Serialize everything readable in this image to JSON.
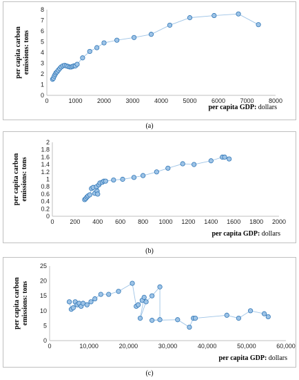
{
  "chart_data": [
    {
      "type": "scatter",
      "caption": "(a)",
      "xlabel_bold": "per capita GDP:",
      "xlabel_rest": " dollars",
      "ylabel_line1": "per capita carbon",
      "ylabel_line2": "emissions: tons",
      "xlim": [
        0,
        8000
      ],
      "ylim": [
        0,
        8
      ],
      "xticks": [
        0,
        1000,
        2000,
        3000,
        4000,
        5000,
        6000,
        7000,
        8000
      ],
      "xtick_labels": [
        "0",
        "1000",
        "2000",
        "3000",
        "4000",
        "5000",
        "6000",
        "7000",
        "8000"
      ],
      "yticks": [
        0,
        1,
        2,
        3,
        4,
        5,
        6,
        7,
        8
      ],
      "ytick_labels": [
        "0",
        "1",
        "2",
        "3",
        "4",
        "5",
        "6",
        "7",
        "8"
      ],
      "grid": false,
      "connected": true,
      "point_color": "#9dc3e6",
      "point_edge": "#2e75b6",
      "line_color": "#9dc3e6",
      "x": [
        200,
        230,
        260,
        290,
        320,
        360,
        400,
        450,
        500,
        560,
        620,
        680,
        740,
        800,
        850,
        900,
        950,
        1000,
        1060,
        1250,
        1500,
        1750,
        2000,
        2450,
        3050,
        3650,
        4300,
        5000,
        5850,
        6700,
        7400
      ],
      "y": [
        1.5,
        1.6,
        1.8,
        1.95,
        2.1,
        2.2,
        2.35,
        2.5,
        2.65,
        2.75,
        2.8,
        2.75,
        2.7,
        2.65,
        2.65,
        2.7,
        2.75,
        2.75,
        2.9,
        3.5,
        4.1,
        4.45,
        4.9,
        5.15,
        5.4,
        5.7,
        6.55,
        7.25,
        7.45,
        7.6,
        6.6
      ]
    },
    {
      "type": "scatter",
      "caption": "(b)",
      "xlabel_bold": "per capita GDP:",
      "xlabel_rest": " dollars",
      "ylabel_line1": "per capita carbon",
      "ylabel_line2": "emissions: tons",
      "xlim": [
        0,
        2000
      ],
      "ylim": [
        0,
        2
      ],
      "xticks": [
        0,
        200,
        400,
        600,
        800,
        1000,
        1200,
        1400,
        1600,
        1800,
        2000
      ],
      "xtick_labels": [
        "0",
        "200",
        "400",
        "600",
        "800",
        "1000",
        "1200",
        "1400",
        "1600",
        "1800",
        "2000"
      ],
      "yticks": [
        0,
        0.2,
        0.4,
        0.6,
        0.8,
        1,
        1.2,
        1.4,
        1.6,
        1.8,
        2
      ],
      "ytick_labels": [
        "0",
        "0.2",
        "0.4",
        "0.6",
        "0.8",
        "1",
        "1.2",
        "1.4",
        "1.6",
        "1.8",
        "2"
      ],
      "grid": false,
      "connected": true,
      "point_color": "#9dc3e6",
      "point_edge": "#2e75b6",
      "line_color": "#9dc3e6",
      "x": [
        285,
        295,
        305,
        315,
        330,
        345,
        360,
        375,
        390,
        395,
        400,
        410,
        420,
        440,
        455,
        470,
        540,
        620,
        720,
        800,
        920,
        1020,
        1150,
        1250,
        1400,
        1500,
        1520,
        1560
      ],
      "y": [
        0.45,
        0.48,
        0.52,
        0.55,
        0.58,
        0.75,
        0.78,
        0.62,
        0.8,
        0.68,
        0.6,
        0.85,
        0.9,
        0.92,
        0.95,
        0.95,
        0.98,
        1.0,
        1.05,
        1.1,
        1.2,
        1.3,
        1.42,
        1.4,
        1.5,
        1.6,
        1.6,
        1.55
      ]
    },
    {
      "type": "scatter",
      "caption": "(c)",
      "xlabel_bold": "per capita GDP:",
      "xlabel_rest": " dollars",
      "ylabel_line1": "per capita carbon",
      "ylabel_line2": "emissions: tons",
      "xlim": [
        0,
        60000
      ],
      "ylim": [
        0,
        25
      ],
      "xticks": [
        0,
        10000,
        20000,
        30000,
        40000,
        50000,
        60000
      ],
      "xtick_labels": [
        "0",
        "10,000",
        "20,000",
        "30,000",
        "40,000",
        "50,000",
        "60,000"
      ],
      "yticks": [
        0,
        5,
        10,
        15,
        20,
        25
      ],
      "ytick_labels": [
        "0",
        "5",
        "10",
        "15",
        "20",
        "25"
      ],
      "grid": false,
      "connected": true,
      "point_color": "#9dc3e6",
      "point_edge": "#2e75b6",
      "line_color": "#9dc3e6",
      "x": [
        5000,
        5500,
        6000,
        6500,
        7000,
        7500,
        8000,
        8500,
        9500,
        10500,
        11500,
        13000,
        15000,
        17500,
        21000,
        22000,
        22500,
        23500,
        24000,
        23000,
        24500,
        26000,
        28000,
        28000,
        26000,
        32500,
        35500,
        36500,
        37000,
        45000,
        48000,
        51000,
        54500,
        55500
      ],
      "y": [
        13,
        10.5,
        11,
        13,
        12,
        12.5,
        11.5,
        12.5,
        12,
        13,
        14,
        15.5,
        15.5,
        16.5,
        19.2,
        11.5,
        12,
        13.5,
        14.5,
        7.5,
        13,
        15,
        18,
        7,
        6.8,
        7,
        4.5,
        7.5,
        7.5,
        8.5,
        7.5,
        10,
        9,
        8
      ]
    }
  ]
}
